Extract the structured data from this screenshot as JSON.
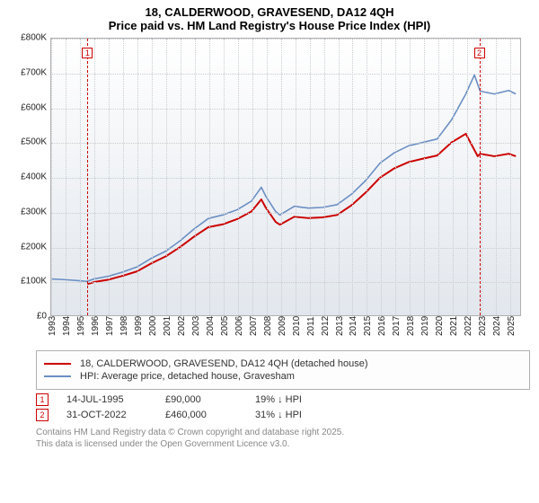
{
  "title": {
    "line1": "18, CALDERWOOD, GRAVESEND, DA12 4QH",
    "line2": "Price paid vs. HM Land Registry's House Price Index (HPI)",
    "fontsize": 13,
    "color": "#000000"
  },
  "chart": {
    "type": "line",
    "background_gradient_top": "#ffffff",
    "background_gradient_bottom": "#e2e7ed",
    "grid_color": "#c8ccd1",
    "border_color": "#b0b0b0",
    "ylim": [
      0,
      800000
    ],
    "ytick_step": 100000,
    "yticks": [
      "£0",
      "£100K",
      "£200K",
      "£300K",
      "£400K",
      "£500K",
      "£600K",
      "£700K",
      "£800K"
    ],
    "xlim": [
      1993,
      2025.8
    ],
    "xticks": [
      1993,
      1994,
      1995,
      1996,
      1997,
      1998,
      1999,
      2000,
      2001,
      2002,
      2003,
      2004,
      2005,
      2006,
      2007,
      2008,
      2009,
      2010,
      2011,
      2012,
      2013,
      2014,
      2015,
      2016,
      2017,
      2018,
      2019,
      2020,
      2021,
      2022,
      2023,
      2024,
      2025
    ],
    "label_fontsize": 10,
    "label_color": "#222222",
    "series": [
      {
        "id": "hpi",
        "label": "HPI: Average price, detached house, Gravesham",
        "color": "#6b8fc4",
        "width": 1.6,
        "points": [
          [
            1993,
            105000
          ],
          [
            1994,
            103000
          ],
          [
            1995,
            100000
          ],
          [
            1995.5,
            98000
          ],
          [
            1996,
            105000
          ],
          [
            1997,
            113000
          ],
          [
            1998,
            125000
          ],
          [
            1999,
            140000
          ],
          [
            2000,
            165000
          ],
          [
            2001,
            185000
          ],
          [
            2002,
            215000
          ],
          [
            2003,
            250000
          ],
          [
            2004,
            280000
          ],
          [
            2005,
            290000
          ],
          [
            2006,
            305000
          ],
          [
            2007,
            330000
          ],
          [
            2007.7,
            370000
          ],
          [
            2008,
            345000
          ],
          [
            2008.7,
            300000
          ],
          [
            2009,
            290000
          ],
          [
            2010,
            315000
          ],
          [
            2011,
            310000
          ],
          [
            2012,
            312000
          ],
          [
            2013,
            320000
          ],
          [
            2014,
            350000
          ],
          [
            2015,
            390000
          ],
          [
            2016,
            440000
          ],
          [
            2017,
            470000
          ],
          [
            2018,
            490000
          ],
          [
            2019,
            500000
          ],
          [
            2020,
            510000
          ],
          [
            2021,
            565000
          ],
          [
            2022,
            640000
          ],
          [
            2022.6,
            695000
          ],
          [
            2023,
            648000
          ],
          [
            2024,
            640000
          ],
          [
            2025,
            650000
          ],
          [
            2025.5,
            640000
          ]
        ]
      },
      {
        "id": "price_paid",
        "label": "18, CALDERWOOD, GRAVESEND, DA12 4QH (detached house)",
        "color": "#cc0000",
        "width": 2,
        "points": [
          [
            1995.53,
            90000
          ],
          [
            1996,
            96000
          ],
          [
            1997,
            103000
          ],
          [
            1998,
            114000
          ],
          [
            1999,
            127000
          ],
          [
            2000,
            150000
          ],
          [
            2001,
            170000
          ],
          [
            2002,
            197000
          ],
          [
            2003,
            228000
          ],
          [
            2004,
            255000
          ],
          [
            2005,
            263000
          ],
          [
            2006,
            278000
          ],
          [
            2007,
            300000
          ],
          [
            2007.7,
            335000
          ],
          [
            2008,
            312000
          ],
          [
            2008.7,
            270000
          ],
          [
            2009,
            262000
          ],
          [
            2010,
            285000
          ],
          [
            2011,
            281000
          ],
          [
            2012,
            283000
          ],
          [
            2013,
            290000
          ],
          [
            2014,
            318000
          ],
          [
            2015,
            355000
          ],
          [
            2016,
            398000
          ],
          [
            2017,
            425000
          ],
          [
            2018,
            443000
          ],
          [
            2019,
            453000
          ],
          [
            2020,
            462000
          ],
          [
            2021,
            500000
          ],
          [
            2022,
            525000
          ],
          [
            2022.83,
            460000
          ],
          [
            2023,
            467000
          ],
          [
            2024,
            460000
          ],
          [
            2025,
            467000
          ],
          [
            2025.5,
            460000
          ]
        ]
      }
    ],
    "sale_markers": [
      {
        "n": "1",
        "x": 1995.53,
        "top_offset": 10
      },
      {
        "n": "2",
        "x": 2022.83,
        "top_offset": 10
      }
    ],
    "sale_line_color": "#cc0000"
  },
  "legend": {
    "border_color": "#b0b0b0",
    "fontsize": 11,
    "items": [
      {
        "color": "#cc0000",
        "label": "18, CALDERWOOD, GRAVESEND, DA12 4QH (detached house)"
      },
      {
        "color": "#6b8fc4",
        "label": "HPI: Average price, detached house, Gravesham"
      }
    ]
  },
  "sales": [
    {
      "n": "1",
      "date": "14-JUL-1995",
      "price": "£90,000",
      "delta": "19% ↓ HPI"
    },
    {
      "n": "2",
      "date": "31-OCT-2022",
      "price": "£460,000",
      "delta": "31% ↓ HPI"
    }
  ],
  "footer": {
    "line1": "Contains HM Land Registry data © Crown copyright and database right 2025.",
    "line2": "This data is licensed under the Open Government Licence v3.0.",
    "color": "#888888"
  }
}
